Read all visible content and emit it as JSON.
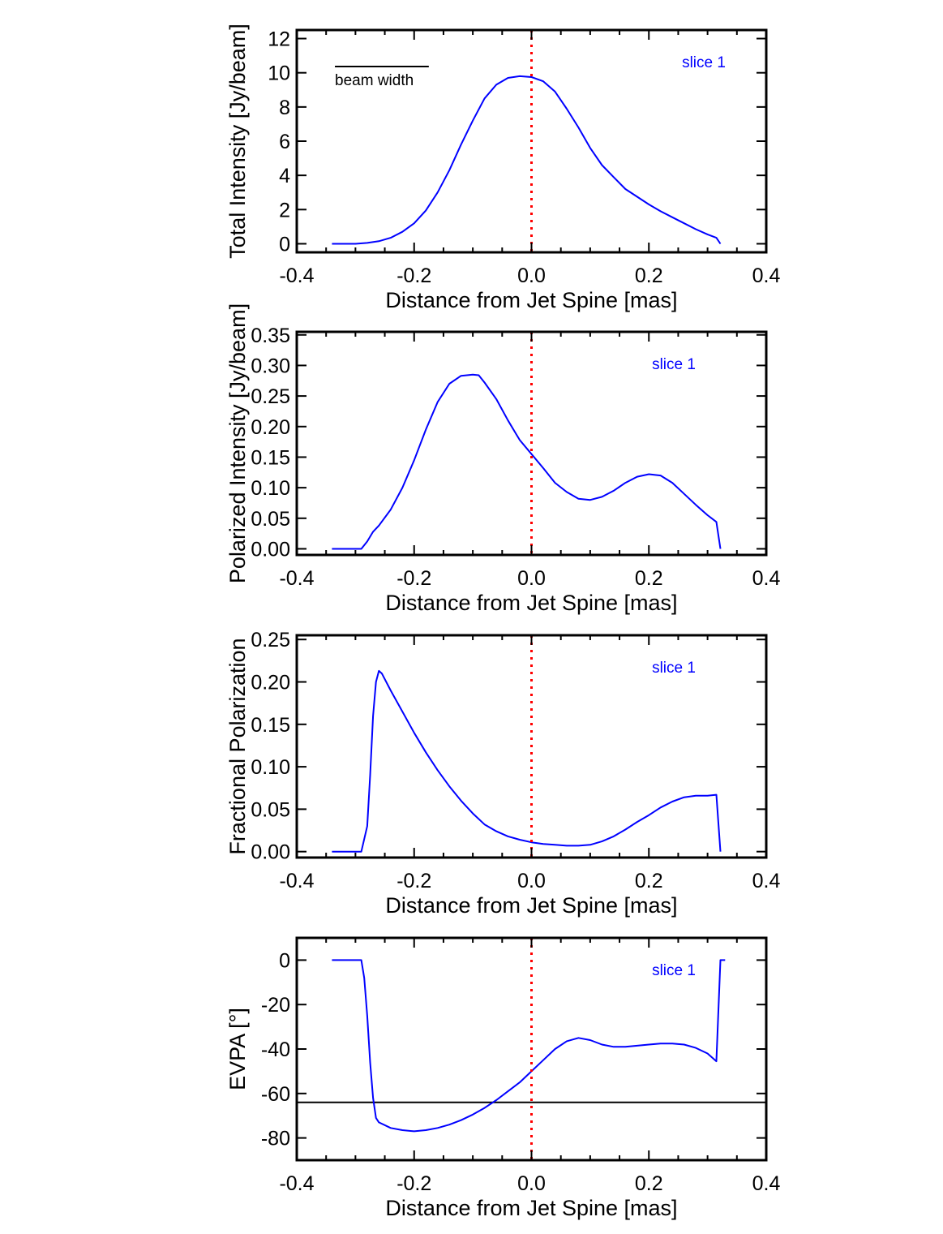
{
  "chart_data": [
    {
      "type": "line",
      "xlabel": "Distance from Jet Spine [mas]",
      "ylabel": "Total Intensity [Jy/beam]",
      "xlim": [
        -0.4,
        0.4
      ],
      "ylim": [
        -0.5,
        12.5
      ],
      "xticks": [
        "-0.4",
        "-0.2",
        "0.0",
        "0.2",
        "0.4"
      ],
      "yticks": [
        "0",
        "2",
        "4",
        "6",
        "8",
        "10",
        "12"
      ],
      "annotation": "slice 1",
      "beam_label": "beam width",
      "beam_span_mas": [
        -0.335,
        -0.175
      ],
      "reference_line_x": 0.0,
      "series_color": "#0000ff",
      "reference_color": "#ff0000",
      "x": [
        -0.34,
        -0.3,
        -0.28,
        -0.26,
        -0.24,
        -0.22,
        -0.2,
        -0.18,
        -0.16,
        -0.14,
        -0.12,
        -0.1,
        -0.08,
        -0.06,
        -0.04,
        -0.02,
        0.0,
        0.02,
        0.04,
        0.06,
        0.08,
        0.1,
        0.12,
        0.14,
        0.16,
        0.18,
        0.2,
        0.22,
        0.24,
        0.26,
        0.28,
        0.3,
        0.315,
        0.322
      ],
      "y": [
        0.0,
        0.0,
        0.05,
        0.15,
        0.35,
        0.7,
        1.2,
        1.95,
        3.0,
        4.3,
        5.8,
        7.2,
        8.5,
        9.3,
        9.7,
        9.8,
        9.75,
        9.5,
        8.9,
        7.9,
        6.8,
        5.6,
        4.6,
        3.9,
        3.2,
        2.75,
        2.3,
        1.9,
        1.55,
        1.2,
        0.85,
        0.55,
        0.35,
        0.0
      ]
    },
    {
      "type": "line",
      "xlabel": "Distance from Jet Spine [mas]",
      "ylabel": "Polarized Intensity [Jy/beam]",
      "xlim": [
        -0.4,
        0.4
      ],
      "ylim": [
        -0.01,
        0.355
      ],
      "xticks": [
        "-0.4",
        "-0.2",
        "0.0",
        "0.2",
        "0.4"
      ],
      "yticks": [
        "0.00",
        "0.05",
        "0.10",
        "0.15",
        "0.20",
        "0.25",
        "0.30",
        "0.35"
      ],
      "annotation": "slice 1",
      "reference_line_x": 0.0,
      "series_color": "#0000ff",
      "reference_color": "#ff0000",
      "x": [
        -0.34,
        -0.29,
        -0.28,
        -0.27,
        -0.26,
        -0.24,
        -0.22,
        -0.2,
        -0.18,
        -0.16,
        -0.14,
        -0.12,
        -0.1,
        -0.09,
        -0.08,
        -0.06,
        -0.04,
        -0.02,
        0.0,
        0.02,
        0.04,
        0.06,
        0.08,
        0.1,
        0.12,
        0.14,
        0.16,
        0.18,
        0.2,
        0.22,
        0.24,
        0.26,
        0.28,
        0.3,
        0.315,
        0.322
      ],
      "y": [
        0.0,
        0.0,
        0.012,
        0.028,
        0.038,
        0.064,
        0.1,
        0.145,
        0.195,
        0.24,
        0.27,
        0.283,
        0.285,
        0.284,
        0.272,
        0.245,
        0.21,
        0.178,
        0.155,
        0.132,
        0.108,
        0.093,
        0.082,
        0.08,
        0.085,
        0.095,
        0.108,
        0.118,
        0.122,
        0.12,
        0.108,
        0.09,
        0.072,
        0.055,
        0.044,
        0.0
      ]
    },
    {
      "type": "line",
      "xlabel": "Distance from Jet Spine [mas]",
      "ylabel": "Fractional Polarization",
      "xlim": [
        -0.4,
        0.4
      ],
      "ylim": [
        -0.007,
        0.255
      ],
      "xticks": [
        "-0.4",
        "-0.2",
        "0.0",
        "0.2",
        "0.4"
      ],
      "yticks": [
        "0.00",
        "0.05",
        "0.10",
        "0.15",
        "0.20",
        "0.25"
      ],
      "annotation": "slice 1",
      "reference_line_x": 0.0,
      "series_color": "#0000ff",
      "reference_color": "#ff0000",
      "x": [
        -0.34,
        -0.29,
        -0.28,
        -0.275,
        -0.27,
        -0.265,
        -0.26,
        -0.255,
        -0.24,
        -0.22,
        -0.2,
        -0.18,
        -0.16,
        -0.14,
        -0.12,
        -0.1,
        -0.08,
        -0.06,
        -0.04,
        -0.02,
        0.0,
        0.02,
        0.04,
        0.06,
        0.08,
        0.1,
        0.12,
        0.14,
        0.16,
        0.18,
        0.2,
        0.22,
        0.24,
        0.26,
        0.28,
        0.3,
        0.315,
        0.322
      ],
      "y": [
        0.0,
        0.0,
        0.03,
        0.09,
        0.16,
        0.2,
        0.213,
        0.21,
        0.19,
        0.165,
        0.14,
        0.117,
        0.096,
        0.077,
        0.06,
        0.045,
        0.032,
        0.024,
        0.018,
        0.014,
        0.011,
        0.009,
        0.008,
        0.007,
        0.007,
        0.008,
        0.012,
        0.018,
        0.026,
        0.035,
        0.043,
        0.052,
        0.059,
        0.064,
        0.066,
        0.066,
        0.067,
        0.0
      ]
    },
    {
      "type": "line",
      "xlabel": "Distance from Jet Spine [mas]",
      "ylabel": "EVPA [°]",
      "xlim": [
        -0.4,
        0.4
      ],
      "ylim": [
        -90,
        10
      ],
      "xticks": [
        "-0.4",
        "-0.2",
        "0.0",
        "0.2",
        "0.4"
      ],
      "yticks": [
        "0",
        "-20",
        "-40",
        "-60",
        "-80"
      ],
      "annotation": "slice 1",
      "reference_line_x": 0.0,
      "horizontal_line_y": -64,
      "series_color": "#0000ff",
      "reference_color": "#ff0000",
      "x": [
        -0.34,
        -0.29,
        -0.285,
        -0.28,
        -0.275,
        -0.27,
        -0.265,
        -0.26,
        -0.24,
        -0.22,
        -0.2,
        -0.18,
        -0.16,
        -0.14,
        -0.12,
        -0.1,
        -0.08,
        -0.06,
        -0.04,
        -0.02,
        0.0,
        0.02,
        0.04,
        0.06,
        0.08,
        0.1,
        0.12,
        0.14,
        0.16,
        0.18,
        0.2,
        0.22,
        0.24,
        0.26,
        0.28,
        0.3,
        0.315,
        0.322,
        0.325,
        0.33
      ],
      "y": [
        0,
        0,
        -8,
        -25,
        -46,
        -62,
        -71,
        -73,
        -75.5,
        -76.5,
        -77,
        -76.5,
        -75.5,
        -74,
        -72,
        -69.5,
        -66.5,
        -63,
        -59,
        -55,
        -50,
        -45,
        -40,
        -36.5,
        -35,
        -36,
        -38,
        -39,
        -39,
        -38.5,
        -38,
        -37.5,
        -37.5,
        -38,
        -39.5,
        -42,
        -45.5,
        0,
        0,
        0
      ]
    }
  ]
}
